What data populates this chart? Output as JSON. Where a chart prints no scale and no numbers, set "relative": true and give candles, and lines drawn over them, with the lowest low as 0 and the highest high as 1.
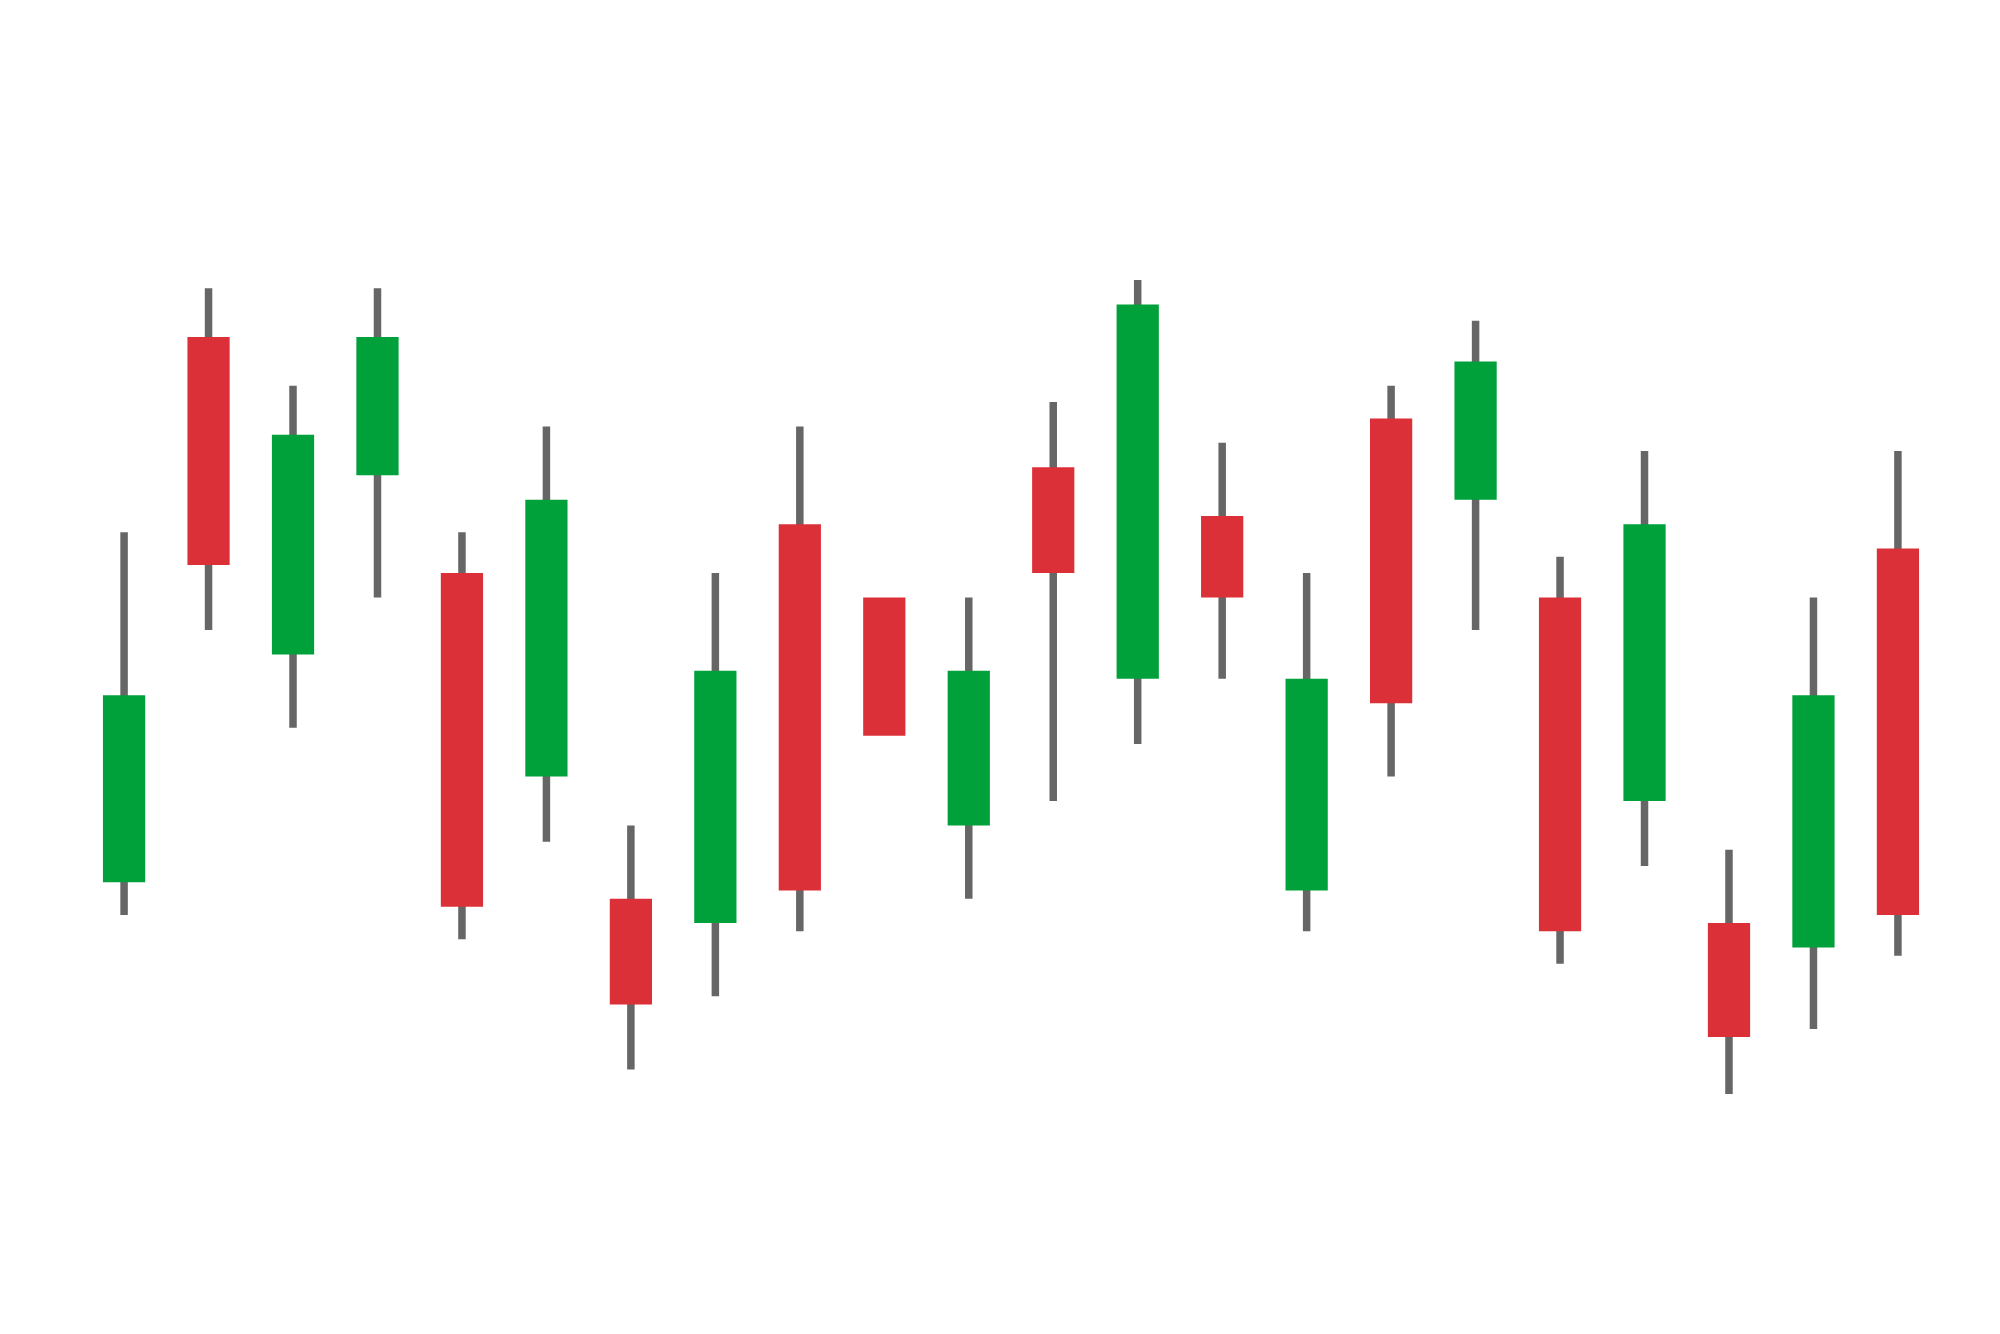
{
  "chart_data": {
    "type": "candlestick",
    "relative": true,
    "categories": [
      null,
      null,
      null,
      null,
      null,
      null,
      null,
      null,
      null,
      null,
      null,
      null,
      null,
      null,
      null,
      null,
      null,
      null,
      null,
      null,
      null,
      null
    ],
    "ohlc": [
      [
        0.26,
        0.69,
        0.22,
        0.49
      ],
      [
        0.93,
        0.99,
        0.57,
        0.65
      ],
      [
        0.54,
        0.87,
        0.45,
        0.81
      ],
      [
        0.76,
        0.99,
        0.61,
        0.93
      ],
      [
        0.64,
        0.69,
        0.19,
        0.23
      ],
      [
        0.39,
        0.82,
        0.31,
        0.73
      ],
      [
        0.24,
        0.33,
        0.03,
        0.11
      ],
      [
        0.21,
        0.64,
        0.12,
        0.52
      ],
      [
        0.7,
        0.82,
        0.2,
        0.25
      ],
      [
        0.61,
        0.61,
        0.44,
        0.44
      ],
      [
        0.33,
        0.61,
        0.24,
        0.52
      ],
      [
        0.77,
        0.85,
        0.36,
        0.64
      ],
      [
        0.51,
        1.0,
        0.43,
        0.97
      ],
      [
        0.71,
        0.8,
        0.51,
        0.61
      ],
      [
        0.25,
        0.64,
        0.2,
        0.51
      ],
      [
        0.83,
        0.87,
        0.39,
        0.48
      ],
      [
        0.73,
        0.95,
        0.57,
        0.9
      ],
      [
        0.61,
        0.66,
        0.16,
        0.2
      ],
      [
        0.36,
        0.79,
        0.28,
        0.7
      ],
      [
        0.21,
        0.3,
        0.0,
        0.07
      ],
      [
        0.18,
        0.61,
        0.08,
        0.49
      ],
      [
        0.67,
        0.79,
        0.17,
        0.22
      ]
    ],
    "colors": [
      "#00a03a",
      "#dc3038",
      "#00a03a",
      "#00a03a",
      "#dc3038",
      "#00a03a",
      "#dc3038",
      "#00a03a",
      "#dc3038",
      "#dc3038",
      "#00a03a",
      "#dc3038",
      "#00a03a",
      "#dc3038",
      "#00a03a",
      "#dc3038",
      "#00a03a",
      "#dc3038",
      "#00a03a",
      "#dc3038",
      "#00a03a",
      "#dc3038"
    ]
  }
}
